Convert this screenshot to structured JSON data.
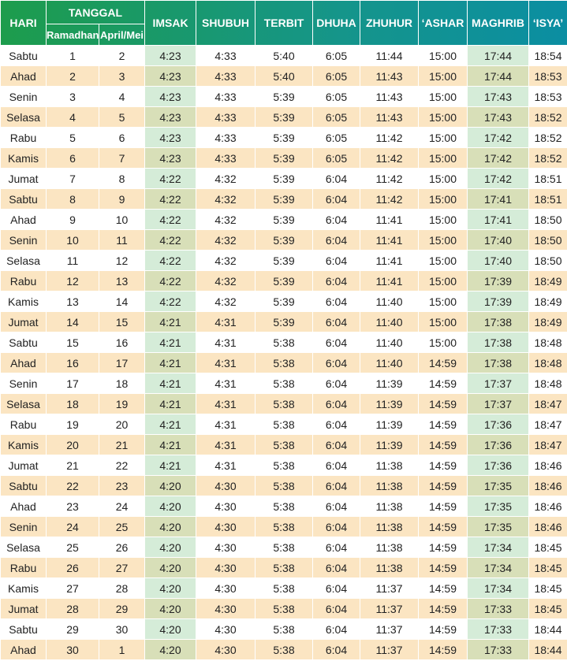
{
  "table": {
    "header": {
      "hari": "HARI",
      "tanggal": "TANGGAL",
      "ramadhan": "Ramadhan",
      "april_mei": "April/Mei",
      "columns": [
        "IMSAK",
        "SHUBUH",
        "TERBIT",
        "DHUHA",
        "ZHUHUR",
        "‘ASHAR",
        "MAGHRIB",
        "‘ISYA’"
      ]
    },
    "rows": [
      [
        "Sabtu",
        "1",
        "2",
        "4:23",
        "4:33",
        "5:40",
        "6:05",
        "11:44",
        "15:00",
        "17:44",
        "18:54"
      ],
      [
        "Ahad",
        "2",
        "3",
        "4:23",
        "4:33",
        "5:40",
        "6:05",
        "11:43",
        "15:00",
        "17:44",
        "18:53"
      ],
      [
        "Senin",
        "3",
        "4",
        "4:23",
        "4:33",
        "5:39",
        "6:05",
        "11:43",
        "15:00",
        "17:43",
        "18:53"
      ],
      [
        "Selasa",
        "4",
        "5",
        "4:23",
        "4:33",
        "5:39",
        "6:05",
        "11:43",
        "15:00",
        "17:43",
        "18:52"
      ],
      [
        "Rabu",
        "5",
        "6",
        "4:23",
        "4:33",
        "5:39",
        "6:05",
        "11:42",
        "15:00",
        "17:42",
        "18:52"
      ],
      [
        "Kamis",
        "6",
        "7",
        "4:23",
        "4:33",
        "5:39",
        "6:05",
        "11:42",
        "15:00",
        "17:42",
        "18:52"
      ],
      [
        "Jumat",
        "7",
        "8",
        "4:22",
        "4:32",
        "5:39",
        "6:04",
        "11:42",
        "15:00",
        "17:42",
        "18:51"
      ],
      [
        "Sabtu",
        "8",
        "9",
        "4:22",
        "4:32",
        "5:39",
        "6:04",
        "11:42",
        "15:00",
        "17:41",
        "18:51"
      ],
      [
        "Ahad",
        "9",
        "10",
        "4:22",
        "4:32",
        "5:39",
        "6:04",
        "11:41",
        "15:00",
        "17:41",
        "18:50"
      ],
      [
        "Senin",
        "10",
        "11",
        "4:22",
        "4:32",
        "5:39",
        "6:04",
        "11:41",
        "15:00",
        "17:40",
        "18:50"
      ],
      [
        "Selasa",
        "11",
        "12",
        "4:22",
        "4:32",
        "5:39",
        "6:04",
        "11:41",
        "15:00",
        "17:40",
        "18:50"
      ],
      [
        "Rabu",
        "12",
        "13",
        "4:22",
        "4:32",
        "5:39",
        "6:04",
        "11:41",
        "15:00",
        "17:39",
        "18:49"
      ],
      [
        "Kamis",
        "13",
        "14",
        "4:22",
        "4:32",
        "5:39",
        "6:04",
        "11:40",
        "15:00",
        "17:39",
        "18:49"
      ],
      [
        "Jumat",
        "14",
        "15",
        "4:21",
        "4:31",
        "5:39",
        "6:04",
        "11:40",
        "15:00",
        "17:38",
        "18:49"
      ],
      [
        "Sabtu",
        "15",
        "16",
        "4:21",
        "4:31",
        "5:38",
        "6:04",
        "11:40",
        "15:00",
        "17:38",
        "18:48"
      ],
      [
        "Ahad",
        "16",
        "17",
        "4:21",
        "4:31",
        "5:38",
        "6:04",
        "11:40",
        "14:59",
        "17:38",
        "18:48"
      ],
      [
        "Senin",
        "17",
        "18",
        "4:21",
        "4:31",
        "5:38",
        "6:04",
        "11:39",
        "14:59",
        "17:37",
        "18:48"
      ],
      [
        "Selasa",
        "18",
        "19",
        "4:21",
        "4:31",
        "5:38",
        "6:04",
        "11:39",
        "14:59",
        "17:37",
        "18:47"
      ],
      [
        "Rabu",
        "19",
        "20",
        "4:21",
        "4:31",
        "5:38",
        "6:04",
        "11:39",
        "14:59",
        "17:36",
        "18:47"
      ],
      [
        "Kamis",
        "20",
        "21",
        "4:21",
        "4:31",
        "5:38",
        "6:04",
        "11:39",
        "14:59",
        "17:36",
        "18:47"
      ],
      [
        "Jumat",
        "21",
        "22",
        "4:21",
        "4:31",
        "5:38",
        "6:04",
        "11:38",
        "14:59",
        "17:36",
        "18:46"
      ],
      [
        "Sabtu",
        "22",
        "23",
        "4:20",
        "4:30",
        "5:38",
        "6:04",
        "11:38",
        "14:59",
        "17:35",
        "18:46"
      ],
      [
        "Ahad",
        "23",
        "24",
        "4:20",
        "4:30",
        "5:38",
        "6:04",
        "11:38",
        "14:59",
        "17:35",
        "18:46"
      ],
      [
        "Senin",
        "24",
        "25",
        "4:20",
        "4:30",
        "5:38",
        "6:04",
        "11:38",
        "14:59",
        "17:35",
        "18:46"
      ],
      [
        "Selasa",
        "25",
        "26",
        "4:20",
        "4:30",
        "5:38",
        "6:04",
        "11:38",
        "14:59",
        "17:34",
        "18:45"
      ],
      [
        "Rabu",
        "26",
        "27",
        "4:20",
        "4:30",
        "5:38",
        "6:04",
        "11:38",
        "14:59",
        "17:34",
        "18:45"
      ],
      [
        "Kamis",
        "27",
        "28",
        "4:20",
        "4:30",
        "5:38",
        "6:04",
        "11:37",
        "14:59",
        "17:34",
        "18:45"
      ],
      [
        "Jumat",
        "28",
        "29",
        "4:20",
        "4:30",
        "5:38",
        "6:04",
        "11:37",
        "14:59",
        "17:33",
        "18:45"
      ],
      [
        "Sabtu",
        "29",
        "30",
        "4:20",
        "4:30",
        "5:38",
        "6:04",
        "11:37",
        "14:59",
        "17:33",
        "18:44"
      ],
      [
        "Ahad",
        "30",
        "1",
        "4:20",
        "4:30",
        "5:38",
        "6:04",
        "11:37",
        "14:59",
        "17:33",
        "18:44"
      ]
    ]
  }
}
